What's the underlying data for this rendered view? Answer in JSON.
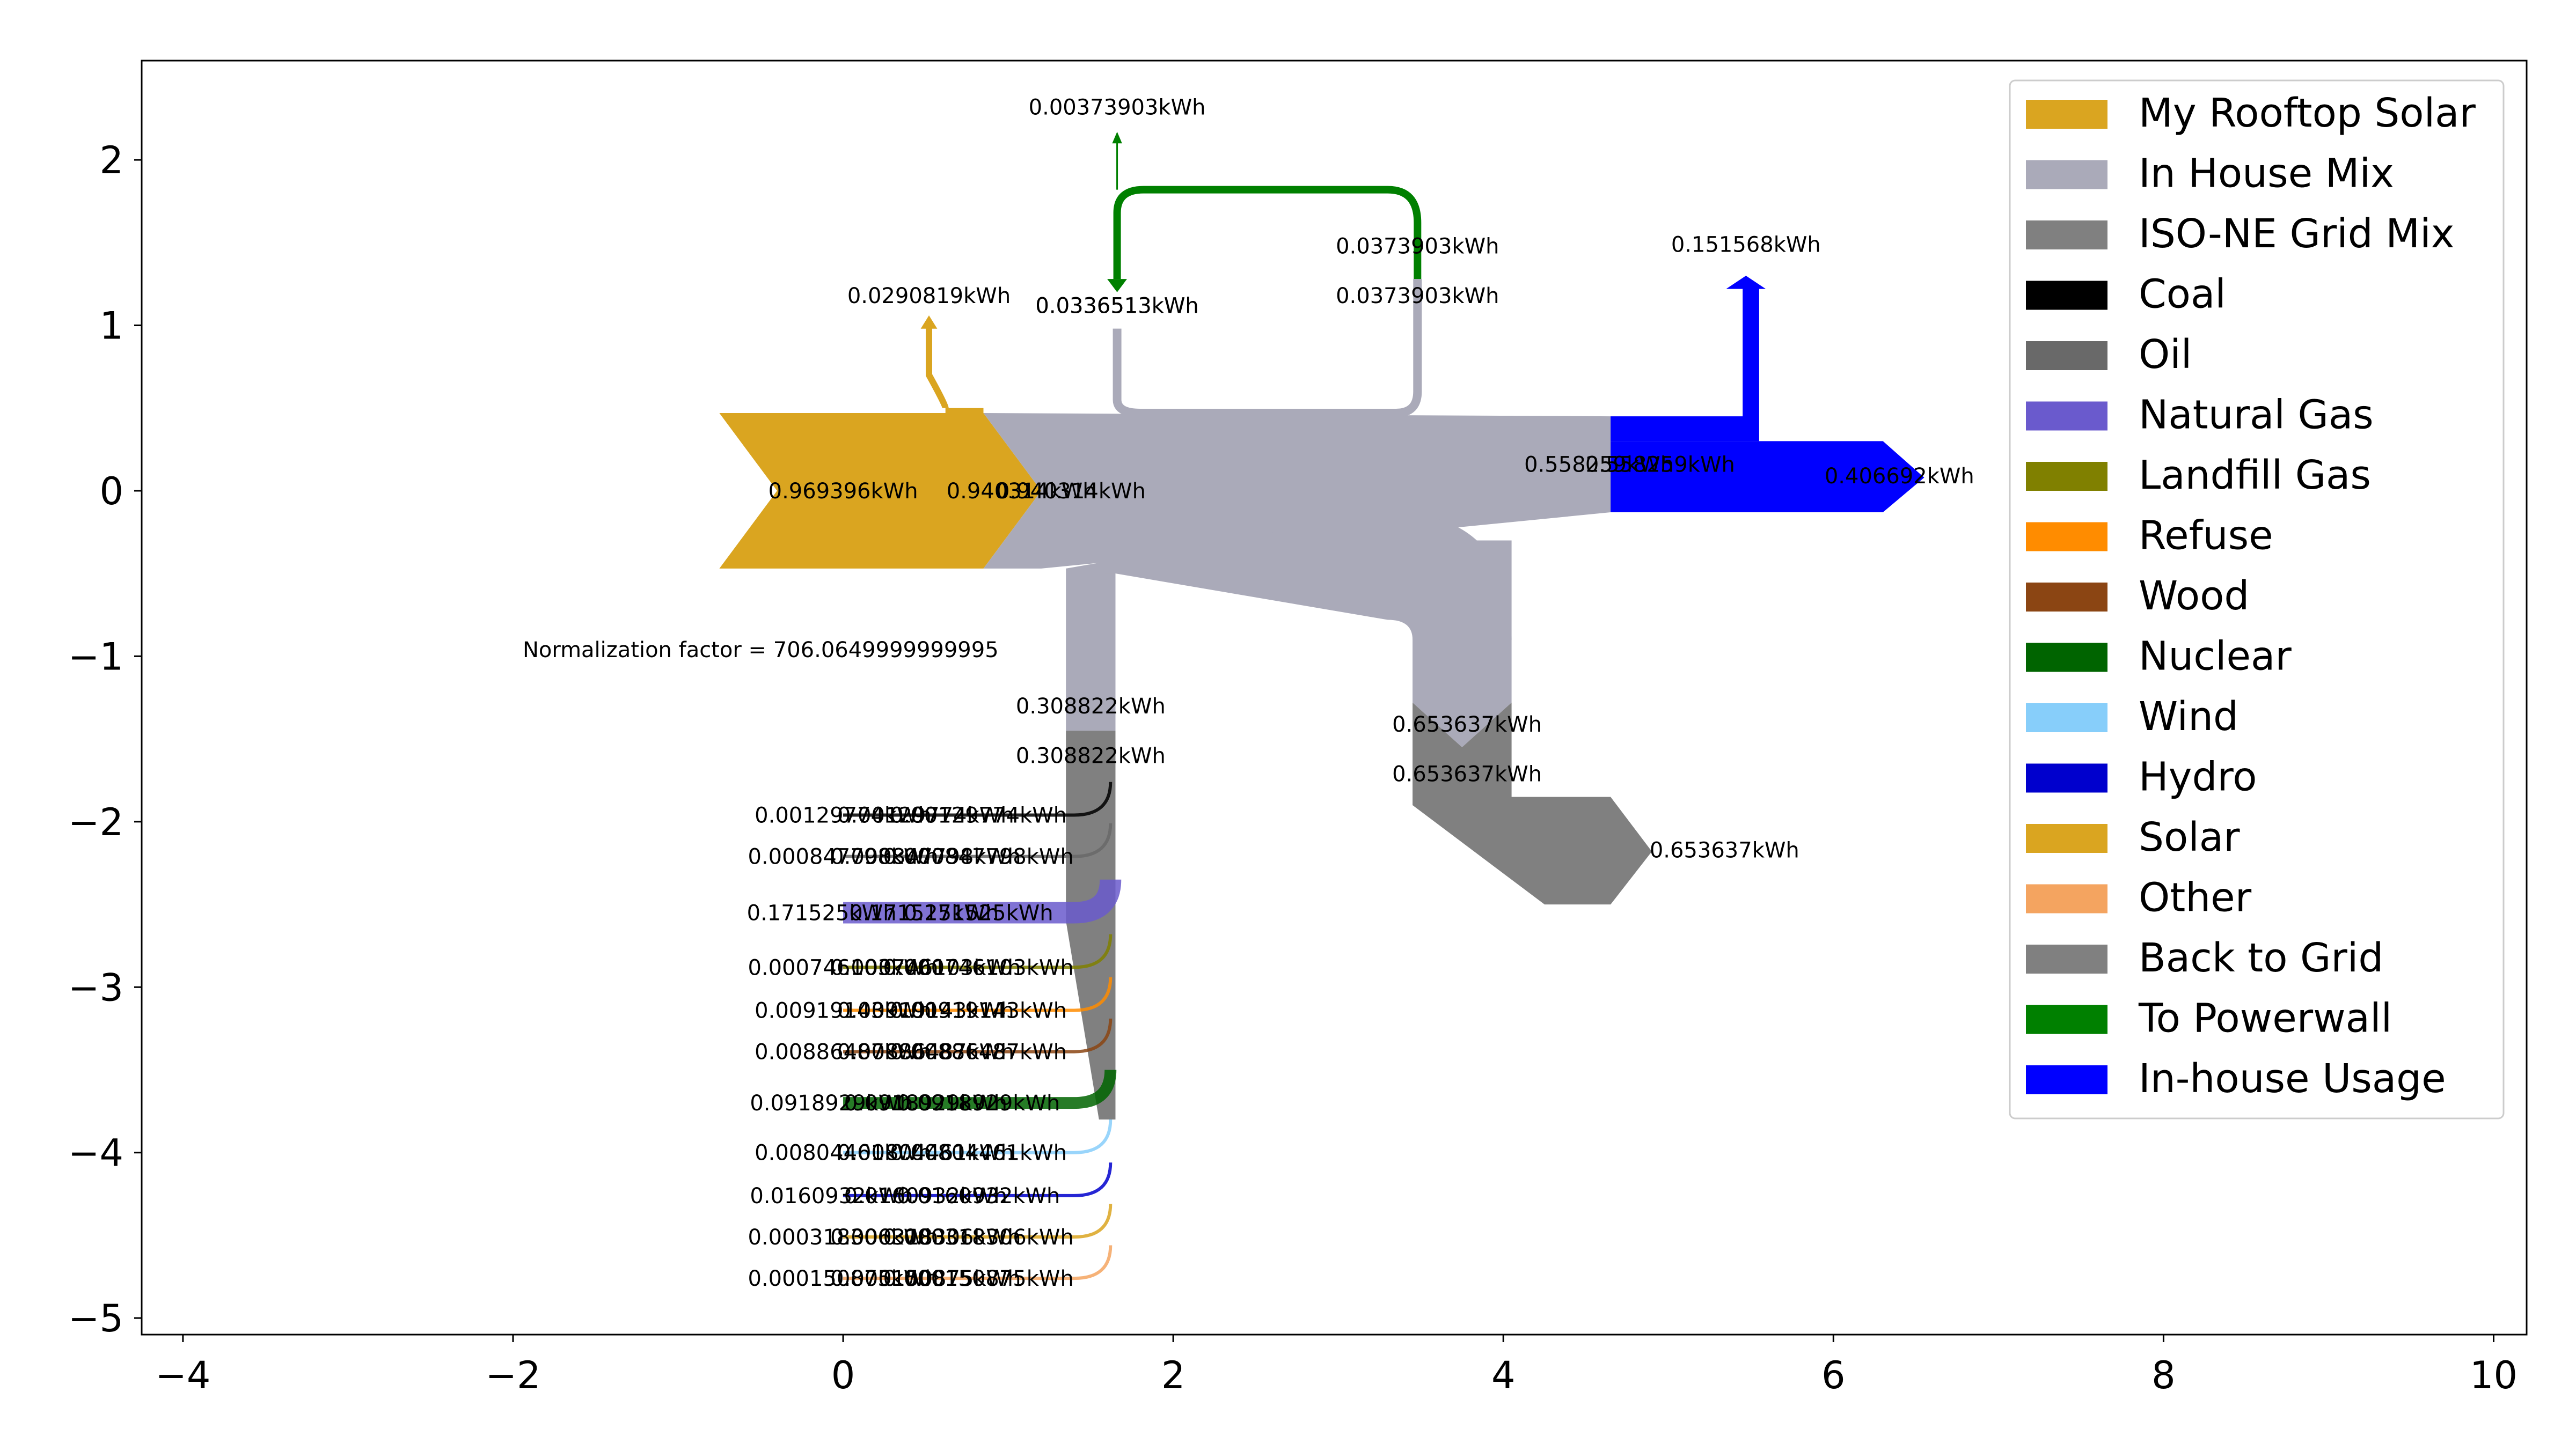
{
  "chart_data": {
    "type": "sankey",
    "xlim": [
      -4.25,
      10.2
    ],
    "ylim": [
      -5.1,
      2.6
    ],
    "x_ticks": [
      -4,
      -2,
      0,
      2,
      4,
      6,
      8,
      10
    ],
    "y_ticks": [
      2,
      1,
      0,
      -1,
      -2,
      -3,
      -4,
      -5
    ],
    "x_tick_labels": [
      "−4",
      "−2",
      "0",
      "2",
      "4",
      "6",
      "8",
      "10"
    ],
    "y_tick_labels": [
      "2",
      "1",
      "0",
      "−1",
      "−2",
      "−3",
      "−4",
      "−5"
    ],
    "annotation": "Normalization factor = 706.0649999999995",
    "legend_position": "top-right",
    "legend": [
      {
        "name": "My Rooftop Solar",
        "color": "#DAA520"
      },
      {
        "name": "In House Mix",
        "color": "#AAAAB9"
      },
      {
        "name": "ISO-NE Grid Mix",
        "color": "#808080"
      },
      {
        "name": "Coal",
        "color": "#000000"
      },
      {
        "name": "Oil",
        "color": "#696969"
      },
      {
        "name": "Natural Gas",
        "color": "#6A5ACD"
      },
      {
        "name": "Landfill Gas",
        "color": "#808000"
      },
      {
        "name": "Refuse",
        "color": "#FF8C00"
      },
      {
        "name": "Wood",
        "color": "#8B4513"
      },
      {
        "name": "Nuclear",
        "color": "#006400"
      },
      {
        "name": "Wind",
        "color": "#87CEFA"
      },
      {
        "name": "Hydro",
        "color": "#0000CD"
      },
      {
        "name": "Solar",
        "color": "#DAA520"
      },
      {
        "name": "Other",
        "color": "#F4A460"
      },
      {
        "name": "Back to Grid",
        "color": "#808080"
      },
      {
        "name": "To Powerwall",
        "color": "#008000"
      },
      {
        "name": "In-house Usage",
        "color": "#0000FF"
      }
    ],
    "flows": [
      {
        "from": "My Rooftop Solar",
        "to": "In House Mix",
        "value_kwh": 0.940314
      },
      {
        "from": "My Rooftop Solar",
        "to": "To Powerwall",
        "value_kwh": 0.0290819
      },
      {
        "from": "ISO-NE Grid Mix",
        "to": "In House Mix",
        "value_kwh": 0.308822
      },
      {
        "from": "Powerwall",
        "to": "In House Mix",
        "value_kwh": 0.0336513
      },
      {
        "from": "In House Mix",
        "to": "To Powerwall",
        "value_kwh": 0.0373903
      },
      {
        "from": "In House Mix",
        "to": "In-house Usage",
        "value_kwh": 0.558259
      },
      {
        "from": "In House Mix",
        "to": "Back to Grid",
        "value_kwh": 0.653637
      },
      {
        "from": "In-house Usage",
        "to": "Powerwall",
        "value_kwh": 0.151568
      },
      {
        "from": "In-house Usage",
        "to": "Usage",
        "value_kwh": 0.406692
      },
      {
        "from": "Coal",
        "to": "ISO-NE Grid Mix",
        "value_kwh": 0.00129774
      },
      {
        "from": "Oil",
        "to": "ISO-NE Grid Mix",
        "value_kwh": 0.000847798
      },
      {
        "from": "Natural Gas",
        "to": "ISO-NE Grid Mix",
        "value_kwh": 0.171525
      },
      {
        "from": "Landfill Gas",
        "to": "ISO-NE Grid Mix",
        "value_kwh": 0.000746103
      },
      {
        "from": "Refuse",
        "to": "ISO-NE Grid Mix",
        "value_kwh": 0.00919143
      },
      {
        "from": "Wood",
        "to": "ISO-NE Grid Mix",
        "value_kwh": 0.00886487
      },
      {
        "from": "Nuclear",
        "to": "ISO-NE Grid Mix",
        "value_kwh": 0.0918929
      },
      {
        "from": "Wind",
        "to": "ISO-NE Grid Mix",
        "value_kwh": 0.00804461
      },
      {
        "from": "Hydro",
        "to": "ISO-NE Grid Mix",
        "value_kwh": 0.0160932
      },
      {
        "from": "Solar",
        "to": "ISO-NE Grid Mix",
        "value_kwh": 0.000318306
      },
      {
        "from": "Other",
        "to": "ISO-NE Grid Mix",
        "value_kwh": 0.000150875
      }
    ],
    "flow_labels": [
      {
        "text": "0.969396kWh",
        "x": 0.0,
        "y": 0.0
      },
      {
        "text": "0.940314kWh",
        "x": 1.08,
        "y": 0.0
      },
      {
        "text": "0.940314kWh",
        "x": 1.38,
        "y": 0.0
      },
      {
        "text": "0.0290819kWh",
        "x": 0.52,
        "y": 1.18
      },
      {
        "text": "0.00373903kWh",
        "x": 1.66,
        "y": 2.32
      },
      {
        "text": "0.0336513kWh",
        "x": 1.66,
        "y": 1.12
      },
      {
        "text": "0.0336513kWh",
        "x": 1.66,
        "y": 1.12
      },
      {
        "text": "0.0373903kWh",
        "x": 3.48,
        "y": 1.48
      },
      {
        "text": "0.0373903kWh",
        "x": 3.48,
        "y": 1.18
      },
      {
        "text": "0.151568kWh",
        "x": 5.47,
        "y": 1.49
      },
      {
        "text": "0.558259kWh",
        "x": 4.58,
        "y": 0.16
      },
      {
        "text": "0.558259kWh",
        "x": 4.95,
        "y": 0.16
      },
      {
        "text": "0.406692kWh",
        "x": 6.4,
        "y": 0.09
      },
      {
        "text": "Normalization factor = 706.0649999999995",
        "x": -0.5,
        "y": -0.96
      },
      {
        "text": "0.308822kWh",
        "x": 1.5,
        "y": -1.3
      },
      {
        "text": "0.308822kWh",
        "x": 1.5,
        "y": -1.6
      },
      {
        "text": "0.653637kWh",
        "x": 3.78,
        "y": -1.41
      },
      {
        "text": "0.653637kWh",
        "x": 3.78,
        "y": -1.71
      },
      {
        "text": "0.653637kWh",
        "x": 5.34,
        "y": -2.17
      },
      {
        "text": "0.00129774kWh",
        "x": 0.0,
        "y": -1.96
      },
      {
        "text": "0.00129774kWh",
        "x": 0.5,
        "y": -1.96
      },
      {
        "text": "0.00129774kWh",
        "x": 0.82,
        "y": -1.96
      },
      {
        "text": "0.000847798kWh",
        "x": 0.0,
        "y": -2.21
      },
      {
        "text": "0.000847798kWh",
        "x": 0.5,
        "y": -2.21
      },
      {
        "text": "0.000847798kWh",
        "x": 0.82,
        "y": -2.21
      },
      {
        "text": "0.171525kWh",
        "x": -0.13,
        "y": -2.55
      },
      {
        "text": "0.171525kWh",
        "x": 0.49,
        "y": -2.55
      },
      {
        "text": "0.171525kWh",
        "x": 0.82,
        "y": -2.55
      },
      {
        "text": "0.000746103kWh",
        "x": 0.0,
        "y": -2.88
      },
      {
        "text": "0.000746103kWh",
        "x": 0.5,
        "y": -2.88
      },
      {
        "text": "0.000746103kWh",
        "x": 0.82,
        "y": -2.88
      },
      {
        "text": "0.00919143kWh",
        "x": 0.0,
        "y": -3.14
      },
      {
        "text": "0.00919143kWh",
        "x": 0.5,
        "y": -3.14
      },
      {
        "text": "0.00919143kWh",
        "x": 0.82,
        "y": -3.14
      },
      {
        "text": "0.00886487kWh",
        "x": 0.0,
        "y": -3.39
      },
      {
        "text": "0.00886487kWh",
        "x": 0.5,
        "y": -3.39
      },
      {
        "text": "0.00886487kWh",
        "x": 0.82,
        "y": -3.39
      },
      {
        "text": "0.0918929kWh",
        "x": -0.07,
        "y": -3.7
      },
      {
        "text": "0.0918929kWh",
        "x": 0.5,
        "y": -3.7
      },
      {
        "text": "0.0918929kWh",
        "x": 0.82,
        "y": -3.7
      },
      {
        "text": "0.00804461kWh",
        "x": 0.0,
        "y": -4.0
      },
      {
        "text": "0.00804461kWh",
        "x": 0.5,
        "y": -4.0
      },
      {
        "text": "0.00804461kWh",
        "x": 0.82,
        "y": -4.0
      },
      {
        "text": "0.0160932kWh",
        "x": -0.07,
        "y": -4.26
      },
      {
        "text": "0.0160932kWh",
        "x": 0.5,
        "y": -4.26
      },
      {
        "text": "0.0160932kWh",
        "x": 0.82,
        "y": -4.26
      },
      {
        "text": "0.000318306kWh",
        "x": 0.0,
        "y": -4.51
      },
      {
        "text": "0.000318306kWh",
        "x": 0.5,
        "y": -4.51
      },
      {
        "text": "0.000318306kWh",
        "x": 0.82,
        "y": -4.51
      },
      {
        "text": "0.000150875kWh",
        "x": 0.0,
        "y": -4.76
      },
      {
        "text": "0.000150875kWh",
        "x": 0.5,
        "y": -4.76
      },
      {
        "text": "0.000150875kWh",
        "x": 0.82,
        "y": -4.76
      }
    ]
  }
}
